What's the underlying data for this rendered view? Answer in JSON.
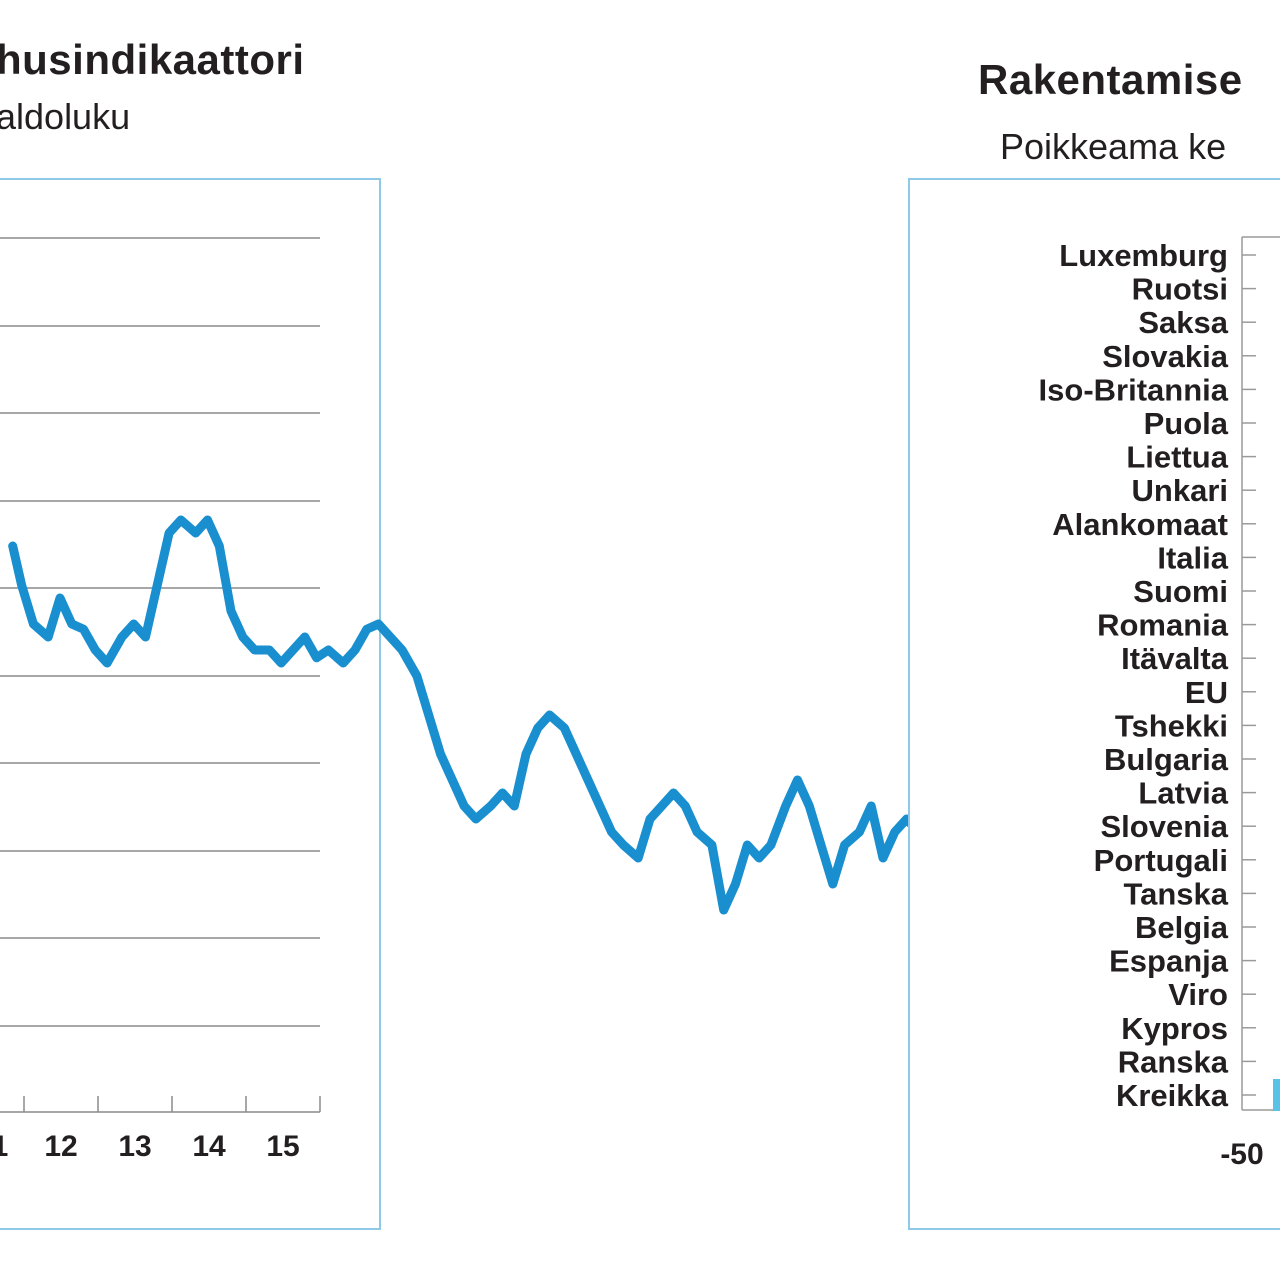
{
  "left": {
    "title": "husindikaattori",
    "subtitle": "aldoluku",
    "accent_color": "#1a8fcf",
    "grid_color": "#8a8a8a",
    "border_color": "#8ecae6"
  },
  "right": {
    "title": "Rakentamise",
    "subtitle": "Poikkeama ke",
    "bar_color": "#5bc2e7",
    "border_color": "#8ecae6"
  },
  "chart_data": [
    {
      "type": "line",
      "title": "husindikaattori",
      "subtitle": "aldoluku",
      "x_tick_labels": [
        "1",
        "12",
        "13",
        "14",
        "15"
      ],
      "y_tick_labels": [],
      "grid": true,
      "series": [
        {
          "color": "#1a8fcf",
          "x": [
            2011.8,
            2011.83,
            2011.87,
            2011.92,
            2011.96,
            2012.0,
            2012.04,
            2012.08,
            2012.12,
            2012.17,
            2012.21,
            2012.25,
            2012.29,
            2012.33,
            2012.37,
            2012.42,
            2012.46,
            2012.5,
            2012.54,
            2012.58,
            2012.62,
            2012.67,
            2012.71,
            2012.75,
            2012.79,
            2012.83,
            2012.87,
            2012.92,
            2012.96,
            2013.0,
            2013.04,
            2013.08,
            2013.12,
            2013.17,
            2013.21,
            2013.25,
            2013.29,
            2013.33,
            2013.37,
            2013.42,
            2013.46,
            2013.5,
            2013.54,
            2013.58,
            2013.62,
            2013.67,
            2013.71,
            2013.75,
            2013.79,
            2013.83,
            2013.87,
            2013.92,
            2013.96,
            2014.0,
            2014.04,
            2014.08,
            2014.12,
            2014.17,
            2014.21,
            2014.25,
            2014.29,
            2014.33,
            2014.37,
            2014.42,
            2014.46,
            2014.5,
            2014.54,
            2014.58,
            2014.62,
            2014.67,
            2014.71,
            2014.75,
            2014.79,
            2014.83,
            2014.87,
            2014.92,
            2014.96,
            2015.0,
            2015.04,
            2015.08,
            2015.12,
            2015.17,
            2015.21,
            2015.25,
            2015.29,
            2015.33,
            2015.37,
            2015.42,
            2015.46,
            2015.5,
            2015.54,
            2015.58,
            2015.62,
            2015.67,
            2015.71,
            2015.75
          ],
          "y": [
            5.0,
            3.5,
            2.0,
            1.5,
            3.0,
            2.0,
            1.8,
            1.0,
            0.5,
            1.5,
            2.0,
            1.5,
            3.5,
            5.5,
            6.0,
            5.5,
            6.0,
            5.0,
            2.5,
            1.5,
            1.0,
            1.0,
            0.5,
            1.0,
            1.5,
            0.7,
            1.0,
            0.5,
            1.0,
            1.8,
            2.0,
            1.5,
            1.0,
            0.0,
            -1.5,
            -3.0,
            -4.0,
            -5.0,
            -5.5,
            -5.0,
            -4.5,
            -5.0,
            -3.0,
            -2.0,
            -1.5,
            -2.0,
            -3.0,
            -4.0,
            -5.0,
            -6.0,
            -6.5,
            -7.0,
            -5.5,
            -5.0,
            -4.5,
            -5.0,
            -6.0,
            -6.5,
            -9.0,
            -8.0,
            -6.5,
            -7.0,
            -6.5,
            -5.0,
            -4.0,
            -5.0,
            -6.5,
            -8.0,
            -6.5,
            -6.0,
            -5.0,
            -7.0,
            -6.0,
            -5.5,
            -6.0,
            -7.5,
            -7.0,
            -6.0,
            -4.5,
            -5.0,
            -8.0,
            -8.5,
            -8.8,
            -8.0,
            -8.0,
            -8.6,
            -8.0,
            -4.5,
            -5.0,
            -4.0,
            -3.5,
            -2.0,
            -1.0,
            2.0,
            -2.0,
            -1.0
          ]
        }
      ]
    },
    {
      "type": "bar",
      "orientation": "horizontal",
      "title": "Rakentamise",
      "subtitle": "Poikkeama ke",
      "categories": [
        "Luxemburg",
        "Ruotsi",
        "Saksa",
        "Slovakia",
        "Iso-Britannia",
        "Puola",
        "Liettua",
        "Unkari",
        "Alankomaat",
        "Italia",
        "Suomi",
        "Romania",
        "Itävalta",
        "EU",
        "Tshekki",
        "Bulgaria",
        "Latvia",
        "Slovenia",
        "Portugali",
        "Tanska",
        "Belgia",
        "Espanja",
        "Viro",
        "Kypros",
        "Ranska",
        "Kreikka"
      ],
      "values": [
        null,
        null,
        null,
        null,
        null,
        null,
        null,
        null,
        null,
        null,
        null,
        null,
        null,
        null,
        null,
        null,
        null,
        null,
        null,
        null,
        null,
        null,
        null,
        null,
        null,
        -45
      ],
      "x_tick_labels": [
        "-50"
      ],
      "xlim": [
        -50,
        null
      ]
    }
  ]
}
